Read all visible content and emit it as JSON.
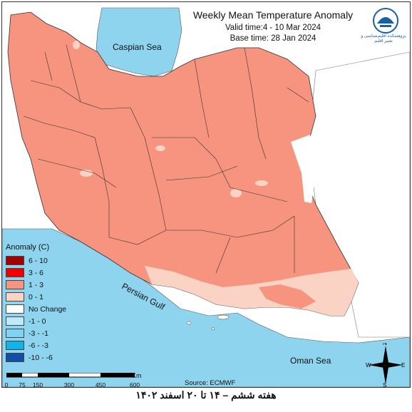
{
  "title": "Weekly Mean Temperature Anomaly",
  "valid_time": "Valid time:4 - 10 Mar 2024",
  "base_time": "Base time: 28 Jan 2024",
  "seas": {
    "caspian": "Caspian Sea",
    "persian_gulf": "Persian Gulf",
    "oman": "Oman Sea"
  },
  "legend": {
    "title": "Anomaly (C)",
    "items": [
      {
        "label": "6 - 10",
        "color": "#a50000"
      },
      {
        "label": "3 - 6",
        "color": "#f20000"
      },
      {
        "label": "1 - 3",
        "color": "#f69480"
      },
      {
        "label": "0 - 1",
        "color": "#fbd3c5"
      },
      {
        "label": "No Change",
        "color": "#ffffff"
      },
      {
        "label": "-1 - 0",
        "color": "#bfe9f9"
      },
      {
        "label": "-3 - -1",
        "color": "#7fd3f4"
      },
      {
        "label": "-6 - -3",
        "color": "#12b3eb"
      },
      {
        "label": "-10 - -6",
        "color": "#0f4ea9"
      }
    ]
  },
  "scale": {
    "labels": [
      "0",
      "75",
      "150",
      "300",
      "450",
      "600"
    ],
    "unit": "Km"
  },
  "source": "Source: ECMWF",
  "compass": {
    "n": "N",
    "s": "S",
    "e": "E",
    "w": "W"
  },
  "logo_text": "پژوهشکده اقلیم‌شناسی و تغییر اقلیم",
  "footer": "هفته ششم – ۱۴ تا ۲۰ اسفند ۱۴۰۲",
  "colors": {
    "sea": "#8fd4ee",
    "neighbor": "#ffffff",
    "anomaly_1_3": "#f69480",
    "anomaly_0_1": "#fbd3c5",
    "no_change": "#ffffff"
  }
}
